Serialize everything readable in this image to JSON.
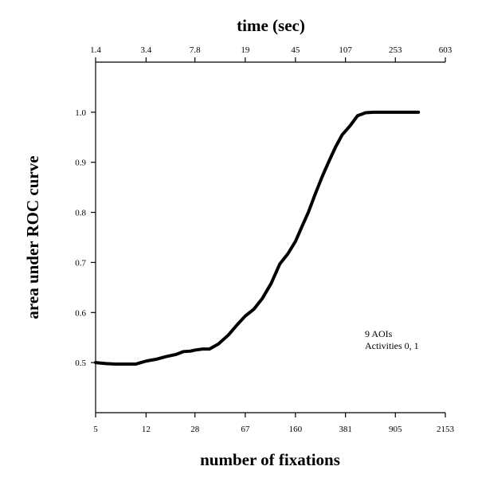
{
  "chart_data": {
    "type": "line",
    "xlabel": "number of fixations",
    "x2label": "time (sec)",
    "ylabel": "area under ROC curve",
    "x_scale": "log",
    "xlim": [
      5,
      2153
    ],
    "ylim": [
      0.4,
      1.1
    ],
    "x_ticks": [
      "5",
      "12",
      "28",
      "67",
      "160",
      "381",
      "905",
      "2153"
    ],
    "x_tick_values": [
      5,
      12,
      28,
      67,
      160,
      381,
      905,
      2153
    ],
    "x2_ticks": [
      "1.4",
      "3.4",
      "7.8",
      "19",
      "45",
      "107",
      "253",
      "603"
    ],
    "y_ticks": [
      "0.5",
      "0.6",
      "0.7",
      "0.8",
      "0.9",
      "1.0"
    ],
    "y_tick_values": [
      0.5,
      0.6,
      0.7,
      0.8,
      0.9,
      1.0
    ],
    "annotations": [
      "9 AOIs",
      "Activities 0, 1"
    ],
    "grid": false,
    "line_color": "#000000",
    "series": [
      {
        "x": [
          5,
          6,
          7,
          8.5,
          10,
          12,
          14.5,
          17,
          20,
          23,
          26,
          28,
          32,
          36,
          42,
          50,
          58,
          67,
          78,
          90,
          105,
          122,
          140,
          160,
          180,
          200,
          225,
          255,
          285,
          320,
          360,
          410,
          470,
          540,
          620,
          730,
          860,
          1000,
          1200,
          1350
        ],
        "y": [
          0.5,
          0.498,
          0.497,
          0.497,
          0.497,
          0.503,
          0.507,
          0.512,
          0.516,
          0.522,
          0.523,
          0.525,
          0.527,
          0.527,
          0.537,
          0.555,
          0.575,
          0.593,
          0.607,
          0.628,
          0.658,
          0.697,
          0.717,
          0.742,
          0.773,
          0.8,
          0.836,
          0.872,
          0.901,
          0.93,
          0.955,
          0.972,
          0.993,
          0.999,
          1.0,
          1.0,
          1.0,
          1.0,
          1.0,
          1.0
        ]
      }
    ]
  }
}
